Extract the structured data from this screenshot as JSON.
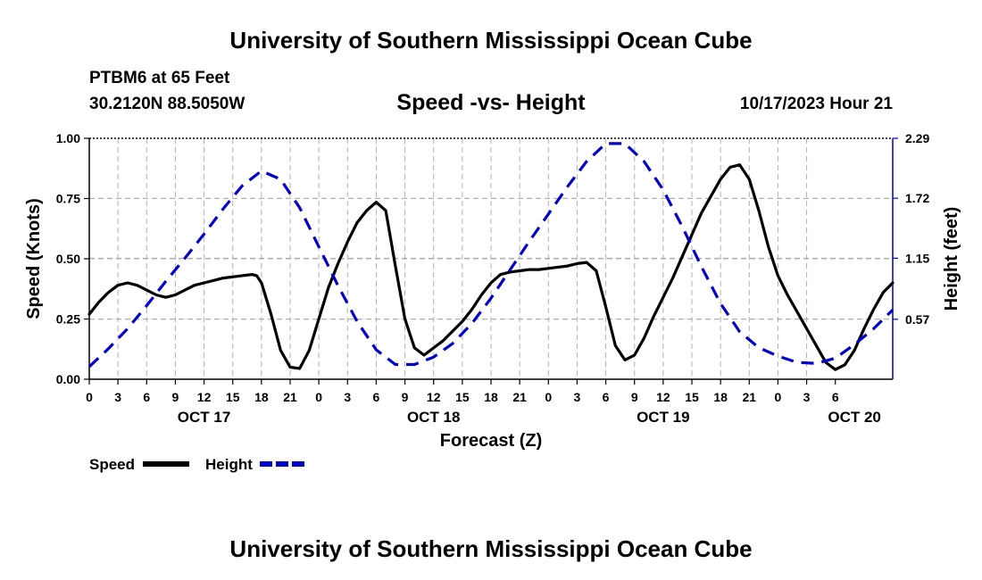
{
  "header": {
    "title": "University of Southern Mississippi Ocean Cube",
    "footer_title": "University of Southern Mississippi Ocean Cube",
    "station": "PTBM6 at 65 Feet",
    "coords": "30.2120N  88.5050W",
    "datetime": "10/17/2023 Hour 21"
  },
  "chart_data": {
    "type": "line",
    "title": "Speed -vs- Height",
    "xlabel": "Forecast (Z)",
    "ylabel": "Speed (Knots)",
    "y2label": "Height (feet)",
    "ylim": [
      0,
      1.0
    ],
    "y2lim": [
      0,
      2.29
    ],
    "xlim_hours": [
      0,
      84
    ],
    "yticks": [
      0,
      0.25,
      0.5,
      0.75,
      1.0
    ],
    "ytick_labels": [
      "0.00",
      "0.25",
      "0.50",
      "0.75",
      "1.00"
    ],
    "y2ticks": [
      0.57,
      1.15,
      1.72,
      2.29
    ],
    "y2tick_labels": [
      "0.57",
      "1.15",
      "1.72",
      "2.29"
    ],
    "xtick_labels": [
      "0",
      "3",
      "6",
      "9",
      "12",
      "15",
      "18",
      "21",
      "0",
      "3",
      "6",
      "9",
      "12",
      "15",
      "18",
      "21",
      "0",
      "3",
      "6",
      "9",
      "12",
      "15",
      "18",
      "21",
      "0",
      "3",
      "6"
    ],
    "day_labels": [
      {
        "hour": 12,
        "label": "OCT 17"
      },
      {
        "hour": 36,
        "label": "OCT 18"
      },
      {
        "hour": 60,
        "label": "OCT 19"
      },
      {
        "hour": 80,
        "label": "OCT 20"
      }
    ],
    "grid": true,
    "series": [
      {
        "name": "Speed",
        "color": "#000000",
        "style": "solid",
        "axis": "left",
        "x": [
          0,
          1,
          2,
          3,
          4,
          5,
          6,
          7,
          8,
          9,
          10,
          11,
          12,
          13,
          14,
          15,
          16,
          17,
          17.5,
          18,
          19,
          20,
          21,
          22,
          23,
          24,
          25,
          26,
          27,
          28,
          29,
          30,
          31,
          32,
          33,
          34,
          35,
          36,
          37,
          38,
          39,
          40,
          41,
          42,
          43,
          44,
          45,
          46,
          47,
          48,
          49,
          50,
          51,
          52,
          53,
          54,
          55,
          56,
          57,
          58,
          59,
          60,
          61,
          62,
          63,
          64,
          65,
          66,
          67,
          68,
          69,
          70,
          71,
          72,
          73,
          74,
          75,
          76,
          77,
          78,
          79,
          80,
          81,
          82,
          83,
          84
        ],
        "values": [
          0.27,
          0.32,
          0.36,
          0.39,
          0.4,
          0.39,
          0.37,
          0.35,
          0.34,
          0.35,
          0.37,
          0.39,
          0.4,
          0.41,
          0.42,
          0.425,
          0.43,
          0.435,
          0.43,
          0.4,
          0.27,
          0.12,
          0.05,
          0.045,
          0.12,
          0.25,
          0.38,
          0.48,
          0.57,
          0.65,
          0.7,
          0.735,
          0.7,
          0.47,
          0.25,
          0.13,
          0.1,
          0.13,
          0.16,
          0.2,
          0.24,
          0.29,
          0.35,
          0.4,
          0.435,
          0.445,
          0.45,
          0.455,
          0.455,
          0.46,
          0.465,
          0.47,
          0.48,
          0.485,
          0.45,
          0.3,
          0.14,
          0.08,
          0.1,
          0.17,
          0.26,
          0.34,
          0.42,
          0.51,
          0.6,
          0.69,
          0.76,
          0.83,
          0.88,
          0.89,
          0.83,
          0.7,
          0.55,
          0.43,
          0.35,
          0.28,
          0.21,
          0.14,
          0.07,
          0.04,
          0.06,
          0.12,
          0.21,
          0.29,
          0.36,
          0.4
        ]
      },
      {
        "name": "Height",
        "color": "#0000cc",
        "style": "dashed",
        "axis": "right",
        "x": [
          0,
          2,
          4,
          6,
          8,
          10,
          12,
          14,
          16,
          18,
          20,
          22,
          24,
          26,
          28,
          30,
          32,
          34,
          36,
          38,
          40,
          42,
          44,
          46,
          48,
          50,
          52,
          54,
          56,
          58,
          60,
          62,
          64,
          66,
          68,
          70,
          72,
          74,
          76,
          78,
          80,
          82,
          84
        ],
        "values": [
          0.12,
          0.29,
          0.48,
          0.7,
          0.93,
          1.15,
          1.38,
          1.62,
          1.84,
          1.98,
          1.9,
          1.63,
          1.26,
          0.89,
          0.55,
          0.28,
          0.14,
          0.14,
          0.21,
          0.34,
          0.53,
          0.77,
          1.04,
          1.31,
          1.57,
          1.83,
          2.07,
          2.24,
          2.24,
          2.07,
          1.8,
          1.45,
          1.07,
          0.72,
          0.45,
          0.3,
          0.22,
          0.16,
          0.15,
          0.2,
          0.33,
          0.48,
          0.66
        ]
      }
    ],
    "legend": [
      {
        "label": "Speed",
        "color": "#000000",
        "style": "solid"
      },
      {
        "label": "Height",
        "color": "#0000cc",
        "style": "dashed"
      }
    ]
  }
}
